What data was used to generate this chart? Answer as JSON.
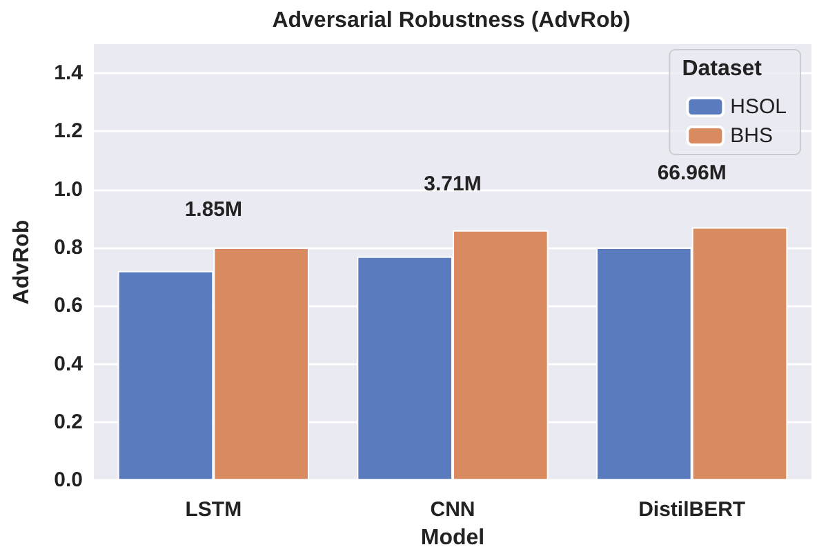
{
  "chart_data": {
    "type": "bar",
    "title": "Adversarial Robustness (AdvRob)",
    "xlabel": "Model",
    "ylabel": "AdvRob",
    "legend_title": "Dataset",
    "categories": [
      "LSTM",
      "CNN",
      "DistilBERT"
    ],
    "series": [
      {
        "name": "HSOL",
        "color": "#5a7cbf",
        "values": [
          0.72,
          0.77,
          0.8
        ]
      },
      {
        "name": "BHS",
        "color": "#d98a5f",
        "values": [
          0.8,
          0.86,
          0.87
        ]
      }
    ],
    "annotations": [
      "1.85M",
      "3.71M",
      "66.96M"
    ],
    "ylim": [
      0,
      1.5
    ],
    "yticks": [
      {
        "value": 0,
        "label": "0.0"
      },
      0.2,
      0.4,
      0.6,
      0.8,
      {
        "value": 1,
        "label": "1.0"
      },
      1.2,
      1.4
    ],
    "grid": true,
    "legend": "top right"
  }
}
